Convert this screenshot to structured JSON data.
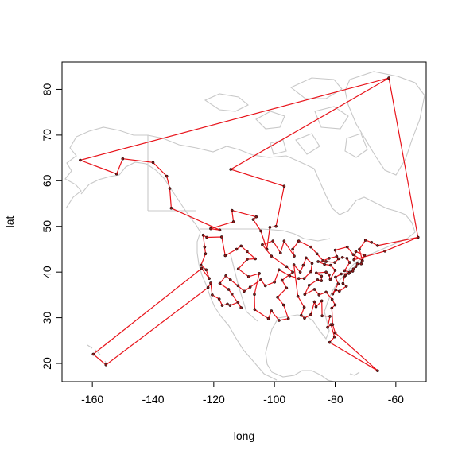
{
  "chart_data": {
    "type": "scatter",
    "title": "",
    "xlabel": "long",
    "ylabel": "lat",
    "xlim": [
      -170,
      -50
    ],
    "ylim": [
      16,
      86
    ],
    "x_ticks": [
      -160,
      -140,
      -120,
      -100,
      -80,
      -60
    ],
    "y_ticks": [
      20,
      30,
      40,
      50,
      60,
      70,
      80
    ],
    "x_tick_labels": [
      "-160",
      "-140",
      "-120",
      "-100",
      "-80",
      "-60"
    ],
    "y_tick_labels": [
      "20",
      "30",
      "40",
      "50",
      "60",
      "70",
      "80"
    ],
    "colors": {
      "route": "#e8141b",
      "points": "#8b1a1a",
      "map": "#c8c8c8"
    },
    "basemap": "North America outline (gray)",
    "tour": [
      [
        -62.3,
        82.5
      ],
      [
        -114.4,
        62.5
      ],
      [
        -96.8,
        58.8
      ],
      [
        -99.5,
        50
      ],
      [
        -101.5,
        49.8
      ],
      [
        -102.5,
        45
      ],
      [
        -104.5,
        49
      ],
      [
        -107,
        51.5
      ],
      [
        -106,
        52.1
      ],
      [
        -114,
        53.5
      ],
      [
        -113.5,
        51
      ],
      [
        -121,
        49.5
      ],
      [
        -118,
        49.2
      ],
      [
        -134,
        54
      ],
      [
        -134.5,
        58.3
      ],
      [
        -135.5,
        61
      ],
      [
        -140,
        64
      ],
      [
        -150,
        64.8
      ],
      [
        -152,
        61.5
      ],
      [
        -164,
        64.5
      ],
      [
        -62.3,
        82.5
      ],
      [
        -52.7,
        47.6
      ],
      [
        -66,
        45.8
      ],
      [
        -68,
        46.5
      ],
      [
        -70,
        47
      ],
      [
        -72,
        45
      ],
      [
        -71,
        42.5
      ],
      [
        -74,
        43.8
      ],
      [
        -76,
        45.5
      ],
      [
        -80,
        44.8
      ],
      [
        -79.5,
        43.4
      ],
      [
        -82,
        43
      ],
      [
        -84,
        42.5
      ],
      [
        -86,
        44
      ],
      [
        -88,
        45.5
      ],
      [
        -92,
        46.8
      ],
      [
        -94,
        45
      ],
      [
        -93.5,
        43.5
      ],
      [
        -96.8,
        46.8
      ],
      [
        -98,
        44.2
      ],
      [
        -100.5,
        46.8
      ],
      [
        -104,
        46
      ],
      [
        -101,
        43.5
      ],
      [
        -96,
        41.2
      ],
      [
        -94,
        40
      ],
      [
        -97.5,
        38.2
      ],
      [
        -96,
        36.5
      ],
      [
        -99,
        34.5
      ],
      [
        -97,
        32.8
      ],
      [
        -95.4,
        29.8
      ],
      [
        -98.5,
        29.4
      ],
      [
        -101,
        31.5
      ],
      [
        -102,
        29.8
      ],
      [
        -106.5,
        31.8
      ],
      [
        -106.6,
        35.1
      ],
      [
        -105,
        39.7
      ],
      [
        -108.5,
        39
      ],
      [
        -111.9,
        40.7
      ],
      [
        -109,
        42.8
      ],
      [
        -106.3,
        42.9
      ],
      [
        -109,
        44.5
      ],
      [
        -111,
        45.7
      ],
      [
        -112.5,
        45
      ],
      [
        -116.2,
        43.6
      ],
      [
        -117.4,
        47.7
      ],
      [
        -122.3,
        47.6
      ],
      [
        -123.5,
        48.1
      ],
      [
        -123,
        45.5
      ],
      [
        -122.7,
        44
      ],
      [
        -124.2,
        41.5
      ],
      [
        -122.5,
        40.5
      ],
      [
        -121.5,
        38.6
      ],
      [
        -124,
        40.8
      ],
      [
        -159.7,
        22.0
      ],
      [
        -155.5,
        19.7
      ],
      [
        -121.9,
        36.6
      ],
      [
        -121,
        37.6
      ],
      [
        -120.5,
        35
      ],
      [
        -118.2,
        34.1
      ],
      [
        -117.2,
        32.7
      ],
      [
        -115.5,
        33
      ],
      [
        -114.6,
        32.7
      ],
      [
        -112,
        33.4
      ],
      [
        -111,
        32.2
      ],
      [
        -114,
        35.2
      ],
      [
        -115.1,
        36.2
      ],
      [
        -118,
        37.5
      ],
      [
        -116,
        39.2
      ],
      [
        -114.5,
        38.3
      ],
      [
        -112,
        37
      ],
      [
        -110,
        35.8
      ],
      [
        -108,
        36.7
      ],
      [
        -104.5,
        38.3
      ],
      [
        -103,
        37
      ],
      [
        -100,
        37.8
      ],
      [
        -98.5,
        40.5
      ],
      [
        -95,
        39.2
      ],
      [
        -92,
        38.6
      ],
      [
        -90.2,
        38.6
      ],
      [
        -88,
        40.1
      ],
      [
        -87.6,
        41.9
      ],
      [
        -89.6,
        43.1
      ],
      [
        -90.5,
        41.5
      ],
      [
        -91.5,
        40
      ],
      [
        -93.6,
        41.6
      ],
      [
        -92.3,
        34.7
      ],
      [
        -90.2,
        32.3
      ],
      [
        -91.2,
        30.5
      ],
      [
        -90.1,
        29.9
      ],
      [
        -88,
        30.7
      ],
      [
        -86.8,
        33.5
      ],
      [
        -86.3,
        32.4
      ],
      [
        -84.4,
        33.7
      ],
      [
        -84.3,
        30.4
      ],
      [
        -81.7,
        30.3
      ],
      [
        -82.5,
        27.9
      ],
      [
        -81.4,
        28.5
      ],
      [
        -80.2,
        25.8
      ],
      [
        -81.8,
        24.6
      ],
      [
        -66,
        18.4
      ],
      [
        -80,
        26.7
      ],
      [
        -80.8,
        28.5
      ],
      [
        -81.1,
        32.1
      ],
      [
        -80,
        32.8
      ],
      [
        -81,
        34
      ],
      [
        -83,
        35.6
      ],
      [
        -85.3,
        35
      ],
      [
        -86.8,
        36.2
      ],
      [
        -90,
        35.1
      ],
      [
        -88.6,
        37.1
      ],
      [
        -85.8,
        38.3
      ],
      [
        -84.5,
        38.1
      ],
      [
        -84.5,
        39.1
      ],
      [
        -86.2,
        39.8
      ],
      [
        -83,
        40
      ],
      [
        -82,
        39.4
      ],
      [
        -81.6,
        38.4
      ],
      [
        -80,
        40.4
      ],
      [
        -81.5,
        41.5
      ],
      [
        -83.5,
        41.7
      ],
      [
        -85.6,
        42.3
      ],
      [
        -83,
        42.3
      ],
      [
        -80.1,
        42.1
      ],
      [
        -78.9,
        42.9
      ],
      [
        -77.6,
        43.2
      ],
      [
        -76.1,
        43
      ],
      [
        -75.2,
        42.1
      ],
      [
        -76.9,
        40.3
      ],
      [
        -75.2,
        40
      ],
      [
        -76.6,
        39.3
      ],
      [
        -77,
        38.9
      ],
      [
        -77.4,
        37.5
      ],
      [
        -76.3,
        36.9
      ],
      [
        -78.6,
        35.8
      ],
      [
        -79.8,
        36.1
      ],
      [
        -80.8,
        35.2
      ],
      [
        -79,
        37.4
      ],
      [
        -79.9,
        38.9
      ],
      [
        -78,
        39.6
      ],
      [
        -75.5,
        39.7
      ],
      [
        -74.2,
        40.2
      ],
      [
        -74,
        40.7
      ],
      [
        -73.2,
        41.2
      ],
      [
        -72.7,
        41.8
      ],
      [
        -71.4,
        41.8
      ],
      [
        -71.1,
        42.4
      ],
      [
        -70.3,
        43.7
      ],
      [
        -73.2,
        44.5
      ],
      [
        -73.8,
        42.7
      ],
      [
        -63.6,
        44.6
      ],
      [
        -52.7,
        47.6
      ]
    ]
  }
}
